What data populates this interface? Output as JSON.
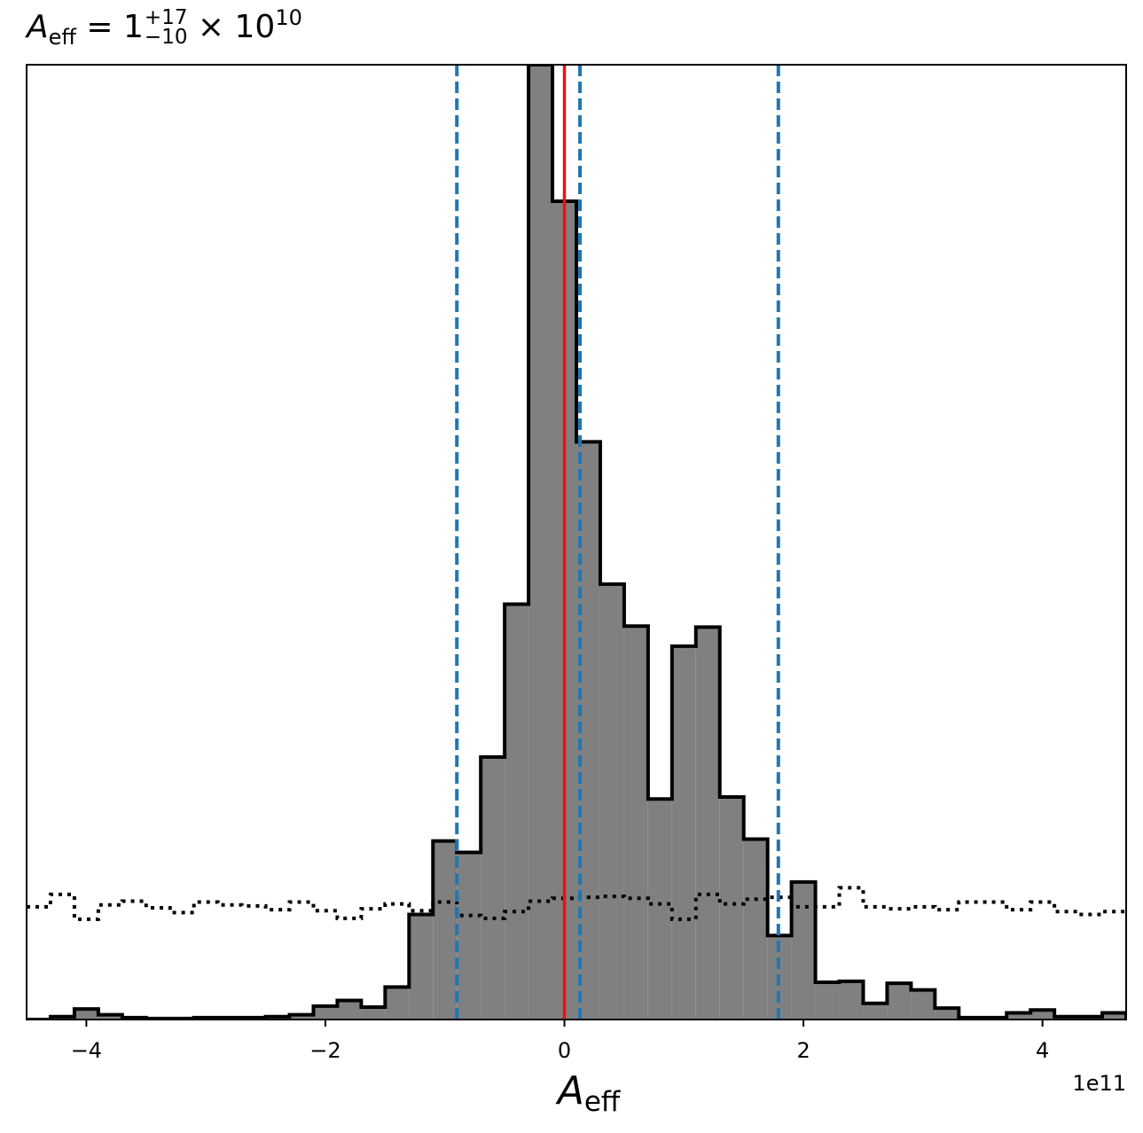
{
  "chart_data": {
    "type": "histogram",
    "title": {
      "symbol": "A",
      "symbol_sub": "eff",
      "equals": " = 1",
      "upper_err": "+17",
      "lower_err": "−10",
      "times": " × 10",
      "exponent": "10"
    },
    "xlabel": {
      "symbol": "A",
      "sub": "eff"
    },
    "ylabel": "",
    "x_offset_label": "1e11",
    "xlim": [
      -4.5,
      4.7
    ],
    "ylim": [
      0,
      1
    ],
    "x_ticks": [
      -4,
      -2,
      0,
      2,
      4
    ],
    "x_tick_labels": [
      "−4",
      "−2",
      "0",
      "2",
      "4"
    ],
    "y_ticks_visible": false,
    "grid": false,
    "bin_edges": [
      -4.5,
      -4.3,
      -4.1,
      -3.9,
      -3.7,
      -3.5,
      -3.3,
      -3.1,
      -2.9,
      -2.7,
      -2.5,
      -2.3,
      -2.1,
      -1.9,
      -1.7,
      -1.5,
      -1.3,
      -1.1,
      -0.9,
      -0.7,
      -0.5,
      -0.3,
      -0.1,
      0.1,
      0.3,
      0.5,
      0.7,
      0.9,
      1.1,
      1.3,
      1.5,
      1.7,
      1.9,
      2.1,
      2.3,
      2.5,
      2.7,
      2.9,
      3.1,
      3.3,
      3.5,
      3.7,
      3.9,
      4.1,
      4.3,
      4.5,
      4.7
    ],
    "histogram_values": [
      0.0,
      0.003,
      0.011,
      0.005,
      0.002,
      0.001,
      0.001,
      0.002,
      0.002,
      0.002,
      0.003,
      0.005,
      0.014,
      0.02,
      0.013,
      0.034,
      0.11,
      0.187,
      0.175,
      0.275,
      0.435,
      1.0,
      0.857,
      0.605,
      0.456,
      0.412,
      0.231,
      0.391,
      0.411,
      0.233,
      0.189,
      0.088,
      0.144,
      0.039,
      0.04,
      0.017,
      0.038,
      0.031,
      0.012,
      0.002,
      0.002,
      0.007,
      0.01,
      0.003,
      0.003,
      0.007
    ],
    "prior_histogram_values": [
      0.118,
      0.131,
      0.105,
      0.12,
      0.124,
      0.117,
      0.112,
      0.123,
      0.12,
      0.119,
      0.115,
      0.123,
      0.114,
      0.106,
      0.116,
      0.121,
      0.114,
      0.123,
      0.109,
      0.106,
      0.113,
      0.124,
      0.127,
      0.128,
      0.129,
      0.127,
      0.121,
      0.105,
      0.131,
      0.121,
      0.126,
      0.128,
      0.118,
      0.118,
      0.138,
      0.118,
      0.116,
      0.118,
      0.115,
      0.123,
      0.123,
      0.115,
      0.123,
      0.113,
      0.11,
      0.113
    ],
    "median_line": 0.0,
    "quantile_lines": [
      -0.9,
      0.13,
      1.79
    ],
    "colors": {
      "fill": "#808080",
      "edge": "#000000",
      "median": "#ee1111",
      "quantiles": "#1f77b4"
    }
  }
}
